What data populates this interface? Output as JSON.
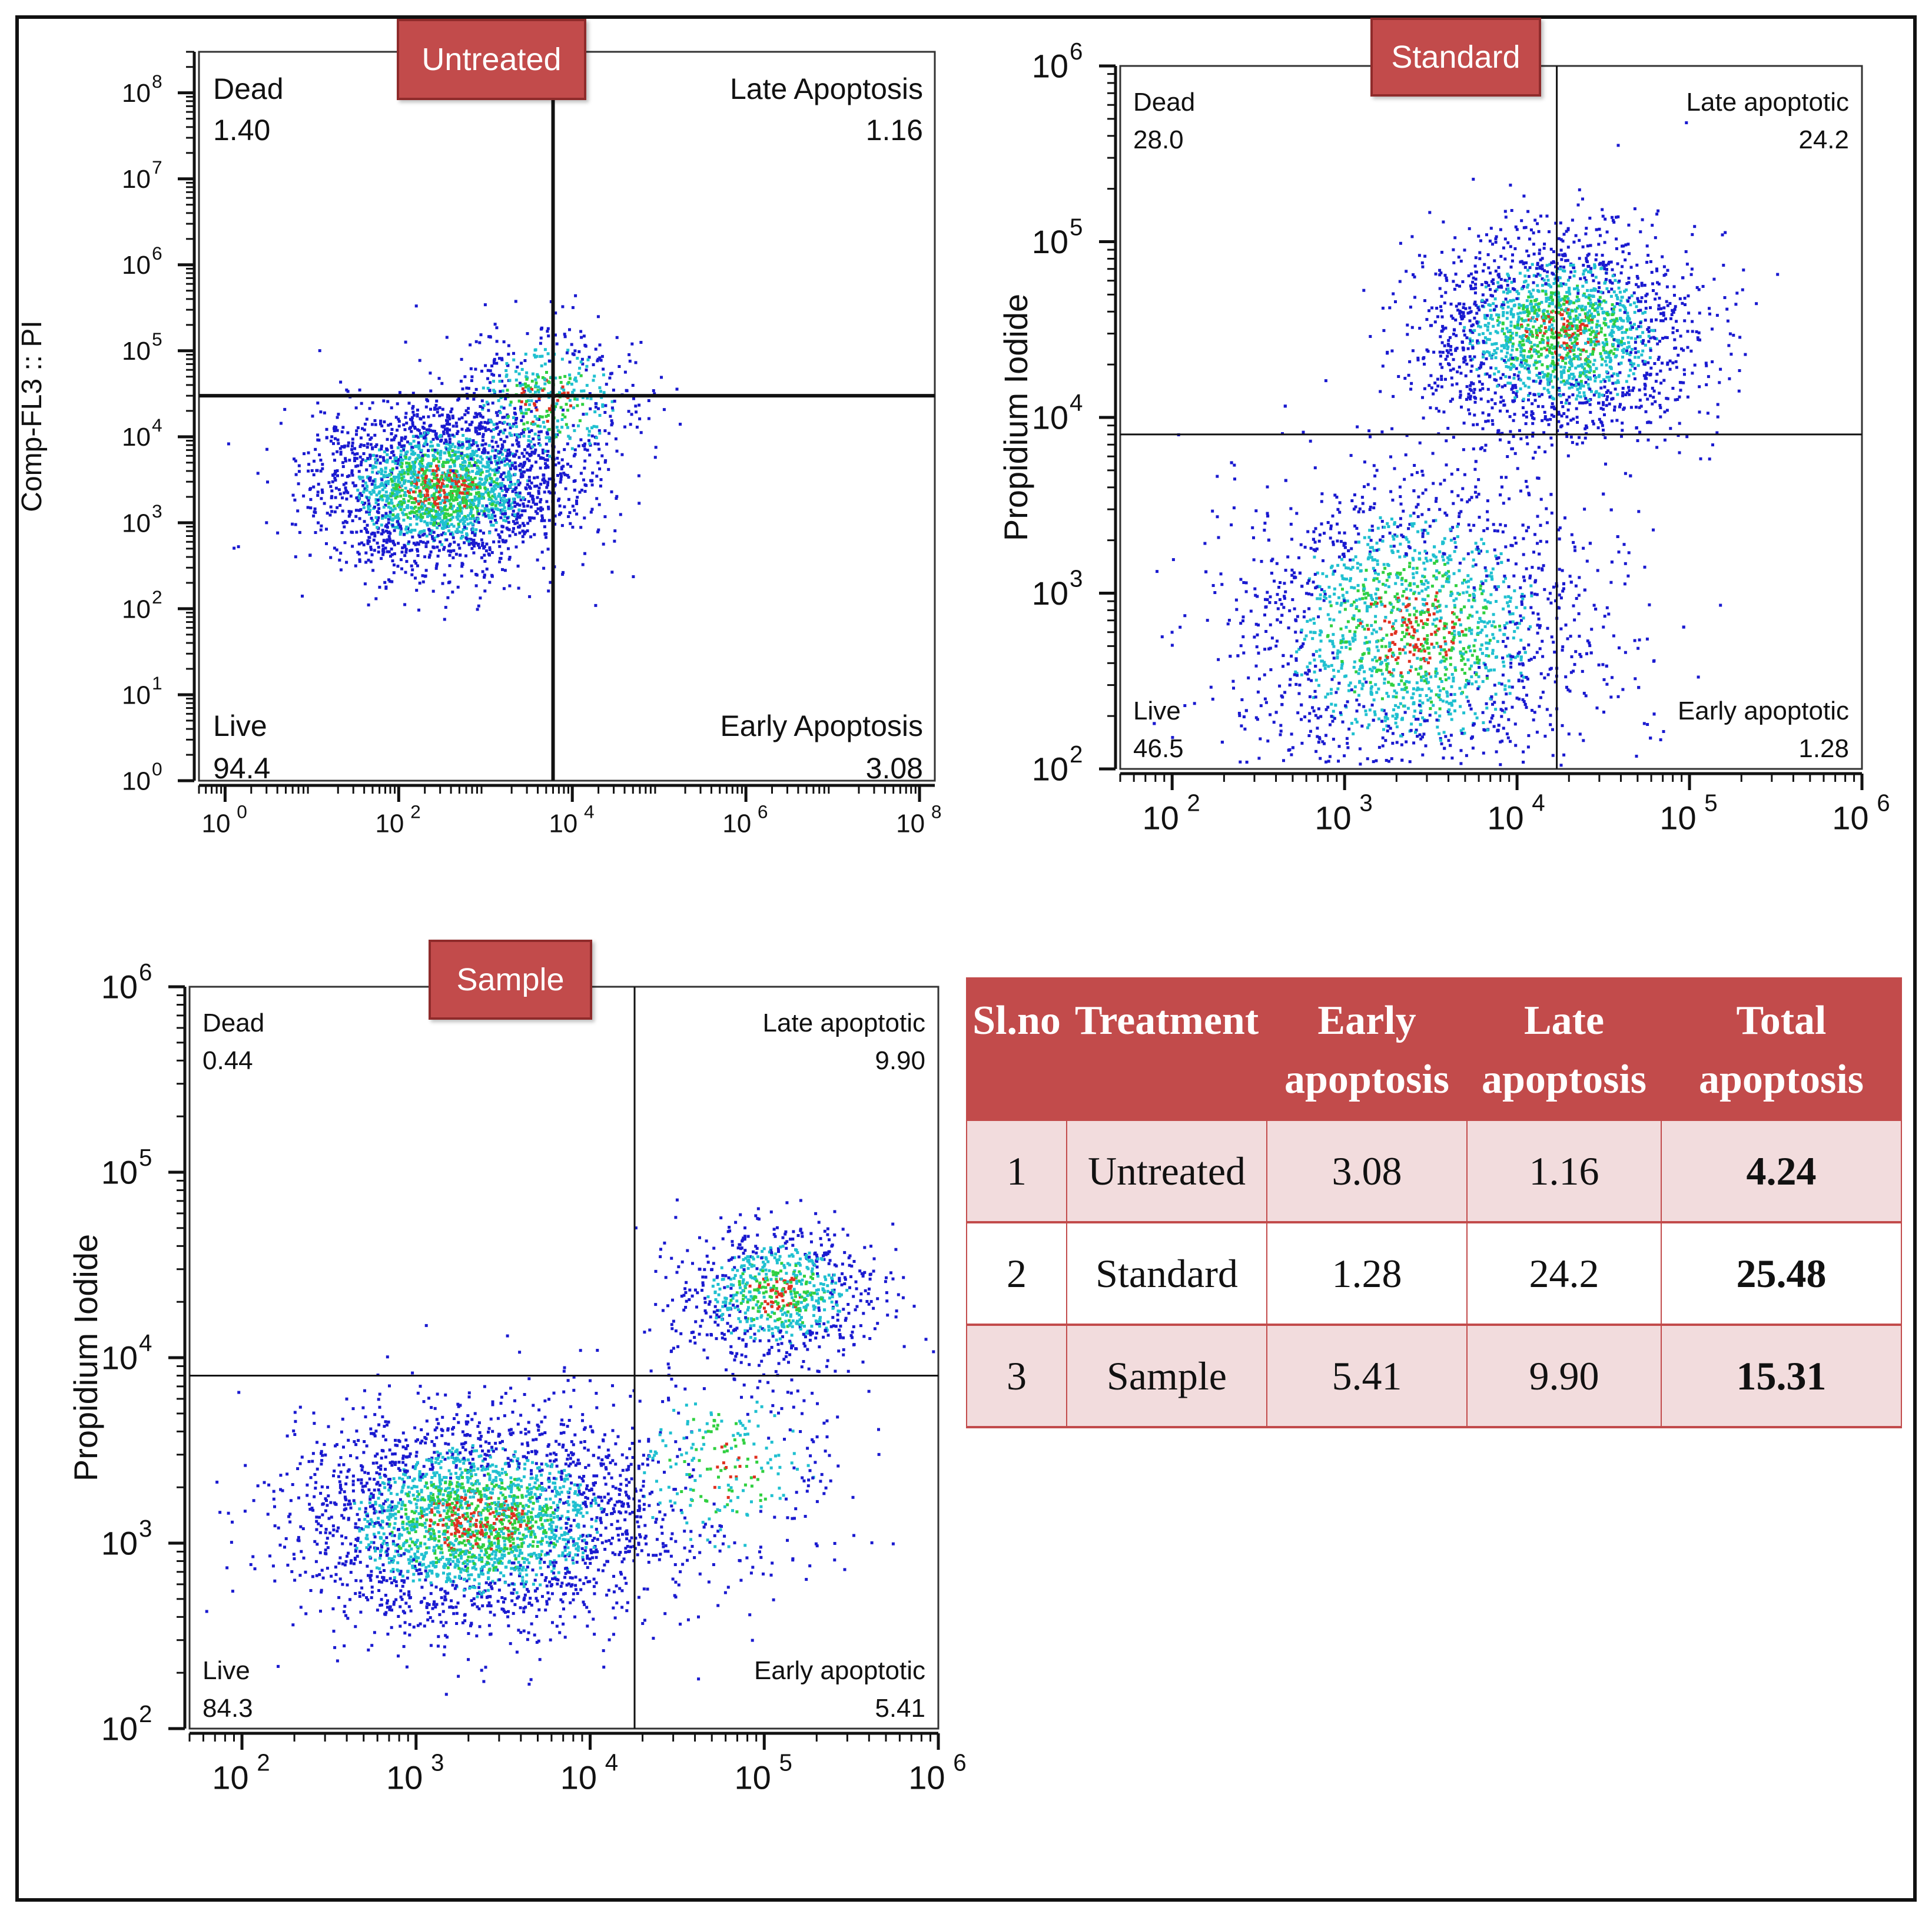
{
  "chart_data": [
    {
      "type": "scatter",
      "title": "Untreated",
      "xlabel": "",
      "ylabel": "Comp-FL3 :: PI",
      "x_scale": "log",
      "y_scale": "log",
      "xlim": [
        0.5,
        150000000
      ],
      "ylim": [
        1,
        300000000
      ],
      "x_ticks": [
        1,
        100,
        10000,
        1000000,
        100000000
      ],
      "y_ticks": [
        1,
        10,
        100,
        1000,
        10000,
        100000,
        1000000,
        10000000,
        100000000
      ],
      "gate_x": 6000,
      "gate_y": 30000,
      "quadrants": {
        "top_left": {
          "name": "Dead",
          "value": "1.40"
        },
        "top_right": {
          "name": "Late Apoptosis",
          "value": "1.16"
        },
        "bottom_left": {
          "name": "Live",
          "value": "94.4"
        },
        "bottom_right": {
          "name": "Early Apoptosis",
          "value": "3.08"
        }
      },
      "clusters": [
        {
          "center_x": 300,
          "center_y": 2500,
          "spread_x_decades": 0.7,
          "spread_y_decades": 0.45,
          "points": 2600
        },
        {
          "center_x": 5000,
          "center_y": 25000,
          "spread_x_decades": 0.55,
          "spread_y_decades": 0.45,
          "points": 550
        }
      ]
    },
    {
      "type": "scatter",
      "title": "Standard",
      "xlabel": "",
      "ylabel": "Propidium Iodide",
      "x_scale": "log",
      "y_scale": "log",
      "xlim": [
        50,
        1000000
      ],
      "ylim": [
        100,
        1000000
      ],
      "x_ticks": [
        100,
        1000,
        10000,
        100000,
        1000000
      ],
      "y_ticks": [
        100,
        1000,
        10000,
        100000,
        1000000
      ],
      "gate_x": 17000,
      "gate_y": 8000,
      "quadrants": {
        "top_left": {
          "name": "Dead",
          "value": "28.0"
        },
        "top_right": {
          "name": "Late apoptotic",
          "value": "24.2"
        },
        "bottom_left": {
          "name": "Live",
          "value": "46.5"
        },
        "bottom_right": {
          "name": "Early apoptotic",
          "value": "1.28"
        }
      },
      "clusters": [
        {
          "center_x": 18000,
          "center_y": 30000,
          "spread_x_decades": 0.38,
          "spread_y_decades": 0.28,
          "points": 2200
        },
        {
          "center_x": 2500,
          "center_y": 600,
          "spread_x_decades": 0.5,
          "spread_y_decades": 0.45,
          "points": 2400
        }
      ]
    },
    {
      "type": "scatter",
      "title": "Sample",
      "xlabel": "",
      "ylabel": "Propidium Iodide",
      "x_scale": "log",
      "y_scale": "log",
      "xlim": [
        50,
        1000000
      ],
      "ylim": [
        100,
        1000000
      ],
      "x_ticks": [
        100,
        1000,
        10000,
        100000,
        1000000
      ],
      "y_ticks": [
        100,
        1000,
        10000,
        100000,
        1000000
      ],
      "gate_x": 18000,
      "gate_y": 8000,
      "quadrants": {
        "top_left": {
          "name": "Dead",
          "value": "0.44"
        },
        "top_right": {
          "name": "Late apoptotic",
          "value": "9.90"
        },
        "bottom_left": {
          "name": "Live",
          "value": "84.3"
        },
        "bottom_right": {
          "name": "Early apoptotic",
          "value": "5.41"
        }
      },
      "clusters": [
        {
          "center_x": 2200,
          "center_y": 1300,
          "spread_x_decades": 0.5,
          "spread_y_decades": 0.28,
          "points": 3000
        },
        {
          "center_x": 120000,
          "center_y": 22000,
          "spread_x_decades": 0.28,
          "spread_y_decades": 0.18,
          "points": 900
        },
        {
          "center_x": 60000,
          "center_y": 2500,
          "spread_x_decades": 0.35,
          "spread_y_decades": 0.3,
          "points": 350
        }
      ]
    },
    {
      "type": "table",
      "columns": [
        "Sl.no",
        "Treatment",
        "Early apoptosis",
        "Late apoptosis",
        "Total apoptosis"
      ],
      "rows": [
        [
          "1",
          "Untreated",
          "3.08",
          "1.16",
          "4.24"
        ],
        [
          "2",
          "Standard",
          "1.28",
          "24.2",
          "25.48"
        ],
        [
          "3",
          "Sample",
          "5.41",
          "9.90",
          "15.31"
        ]
      ]
    }
  ],
  "colors": {
    "tag_fill": "#c24b4b",
    "tag_border": "#8f2b2b",
    "table_header": "#c24b4b",
    "table_row_alt": "#f2dcdd",
    "density_low": "#1a1ad0",
    "density_mid": "#20c0d0",
    "density_high": "#30d040",
    "density_peak": "#e03020"
  }
}
